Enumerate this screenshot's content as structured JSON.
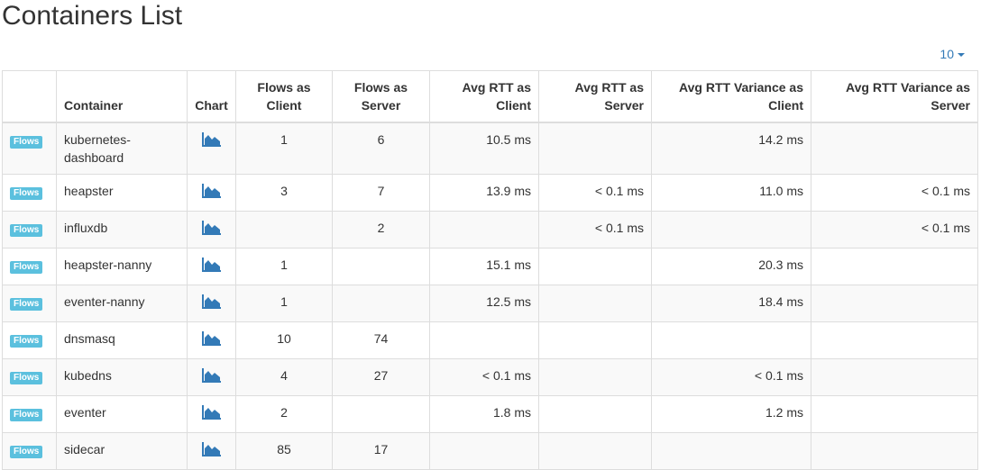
{
  "page": {
    "title": "Containers List",
    "page_size": "10"
  },
  "table": {
    "headers": {
      "container": "Container",
      "chart": "Chart",
      "flows_client": "Flows as Client",
      "flows_server": "Flows as Server",
      "rtt_client": "Avg RTT as Client",
      "rtt_server": "Avg RTT as Server",
      "var_client": "Avg RTT Variance as Client",
      "var_server": "Avg RTT Variance as Server"
    },
    "flows_label": "Flows",
    "rows": [
      {
        "container": "kubernetes-dashboard",
        "flows_client": "1",
        "flows_server": "6",
        "rtt_client": "10.5 ms",
        "rtt_server": "",
        "var_client": "14.2 ms",
        "var_server": ""
      },
      {
        "container": "heapster",
        "flows_client": "3",
        "flows_server": "7",
        "rtt_client": "13.9 ms",
        "rtt_server": "< 0.1 ms",
        "var_client": "11.0 ms",
        "var_server": "< 0.1 ms"
      },
      {
        "container": "influxdb",
        "flows_client": "",
        "flows_server": "2",
        "rtt_client": "",
        "rtt_server": "< 0.1 ms",
        "var_client": "",
        "var_server": "< 0.1 ms"
      },
      {
        "container": "heapster-nanny",
        "flows_client": "1",
        "flows_server": "",
        "rtt_client": "15.1 ms",
        "rtt_server": "",
        "var_client": "20.3 ms",
        "var_server": ""
      },
      {
        "container": "eventer-nanny",
        "flows_client": "1",
        "flows_server": "",
        "rtt_client": "12.5 ms",
        "rtt_server": "",
        "var_client": "18.4 ms",
        "var_server": ""
      },
      {
        "container": "dnsmasq",
        "flows_client": "10",
        "flows_server": "74",
        "rtt_client": "",
        "rtt_server": "",
        "var_client": "",
        "var_server": ""
      },
      {
        "container": "kubedns",
        "flows_client": "4",
        "flows_server": "27",
        "rtt_client": "< 0.1 ms",
        "rtt_server": "",
        "var_client": "< 0.1 ms",
        "var_server": ""
      },
      {
        "container": "eventer",
        "flows_client": "2",
        "flows_server": "",
        "rtt_client": "1.8 ms",
        "rtt_server": "",
        "var_client": "1.2 ms",
        "var_server": ""
      },
      {
        "container": "sidecar",
        "flows_client": "85",
        "flows_server": "17",
        "rtt_client": "",
        "rtt_server": "",
        "var_client": "",
        "var_server": ""
      }
    ]
  },
  "icons": {
    "chart": "area-chart-icon"
  },
  "colors": {
    "flows_badge": "#5bc0de",
    "chart_icon": "#337ab7",
    "link": "#337ab7"
  }
}
